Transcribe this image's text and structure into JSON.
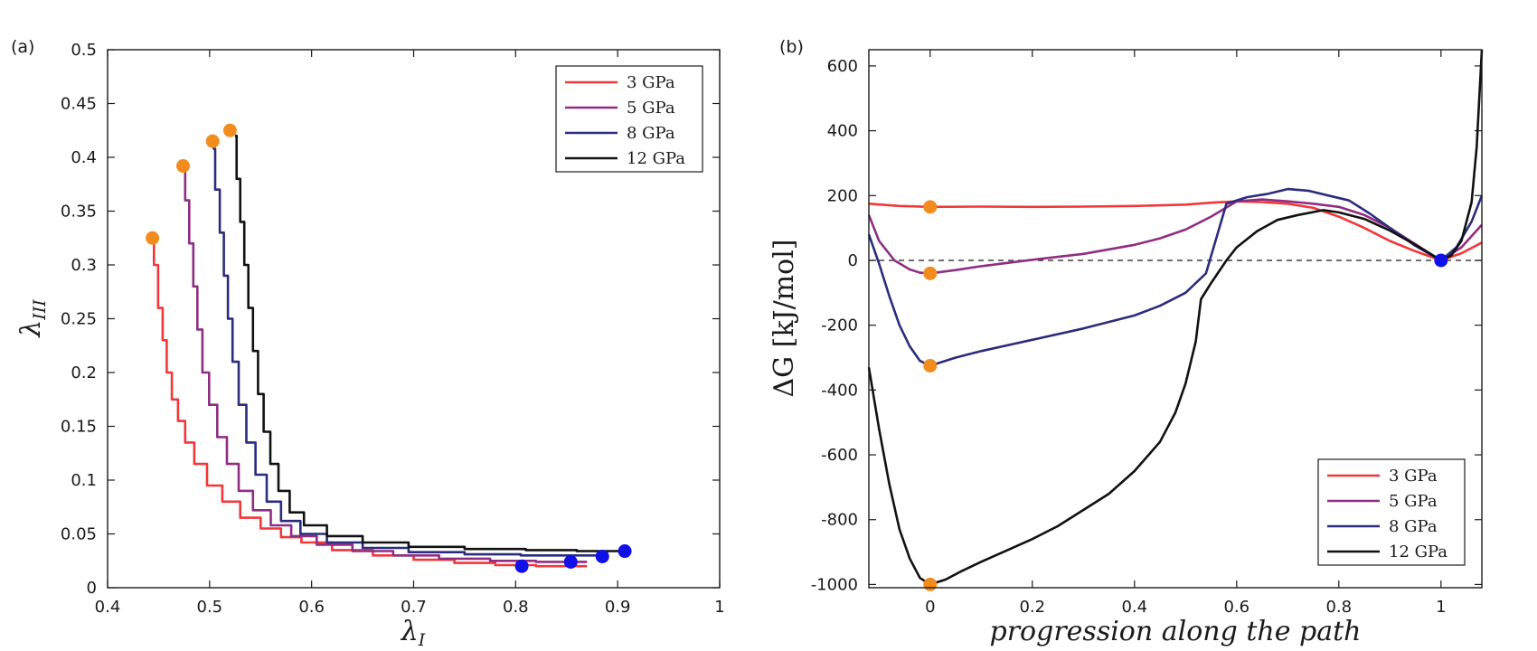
{
  "chart_data": [
    {
      "type": "line",
      "panel_label": "(a)",
      "xlabel": "λ",
      "xlabel_sub": "I",
      "ylabel": "λ",
      "ylabel_sub": "III",
      "xlim": [
        0.4,
        1.0
      ],
      "ylim": [
        0,
        0.5
      ],
      "xticks": [
        0.4,
        0.5,
        0.6,
        0.7,
        0.8,
        0.9,
        1.0
      ],
      "xtick_labels": [
        "0.4",
        "0.5",
        "0.6",
        "0.7",
        "0.8",
        "0.9",
        "1"
      ],
      "yticks": [
        0,
        0.05,
        0.1,
        0.15,
        0.2,
        0.25,
        0.3,
        0.35,
        0.4,
        0.45,
        0.5
      ],
      "ytick_labels": [
        "0",
        "0.05",
        "0.1",
        "0.15",
        "0.2",
        "0.25",
        "0.3",
        "0.35",
        "0.4",
        "0.45",
        "0.5"
      ],
      "legend_position": "top-right",
      "series": [
        {
          "name": "3 GPa",
          "color": "#f0383a",
          "x": [
            0.444,
            0.447,
            0.452,
            0.456,
            0.46,
            0.466,
            0.472,
            0.48,
            0.49,
            0.505,
            0.52,
            0.54,
            0.56,
            0.58,
            0.6,
            0.64,
            0.68,
            0.72,
            0.76,
            0.8,
            0.84,
            0.87
          ],
          "y": [
            0.325,
            0.3,
            0.26,
            0.23,
            0.2,
            0.175,
            0.155,
            0.135,
            0.115,
            0.095,
            0.08,
            0.065,
            0.055,
            0.047,
            0.042,
            0.035,
            0.03,
            0.026,
            0.023,
            0.021,
            0.02,
            0.02
          ]
        },
        {
          "name": "5 GPa",
          "color": "#8f2d82",
          "x": [
            0.474,
            0.478,
            0.482,
            0.486,
            0.49,
            0.496,
            0.503,
            0.512,
            0.522,
            0.535,
            0.55,
            0.57,
            0.59,
            0.62,
            0.66,
            0.7,
            0.75,
            0.8,
            0.84,
            0.87
          ],
          "y": [
            0.392,
            0.36,
            0.32,
            0.28,
            0.24,
            0.2,
            0.17,
            0.14,
            0.115,
            0.09,
            0.072,
            0.058,
            0.048,
            0.04,
            0.034,
            0.03,
            0.027,
            0.025,
            0.024,
            0.024
          ]
        },
        {
          "name": "8 GPa",
          "color": "#2b2c7c",
          "x": [
            0.503,
            0.508,
            0.512,
            0.516,
            0.52,
            0.525,
            0.532,
            0.54,
            0.55,
            0.562,
            0.578,
            0.6,
            0.63,
            0.67,
            0.72,
            0.78,
            0.83,
            0.87,
            0.89
          ],
          "y": [
            0.408,
            0.37,
            0.33,
            0.29,
            0.25,
            0.21,
            0.17,
            0.135,
            0.105,
            0.08,
            0.062,
            0.05,
            0.042,
            0.037,
            0.033,
            0.031,
            0.03,
            0.03,
            0.03
          ]
        },
        {
          "name": "12 GPa",
          "color": "#111111",
          "x": [
            0.525,
            0.528,
            0.532,
            0.536,
            0.54,
            0.545,
            0.55,
            0.556,
            0.563,
            0.572,
            0.585,
            0.6,
            0.63,
            0.67,
            0.72,
            0.78,
            0.84,
            0.88,
            0.91
          ],
          "y": [
            0.42,
            0.38,
            0.34,
            0.3,
            0.26,
            0.22,
            0.18,
            0.145,
            0.115,
            0.09,
            0.07,
            0.058,
            0.048,
            0.042,
            0.038,
            0.036,
            0.035,
            0.034,
            0.034
          ]
        }
      ],
      "start_markers": {
        "color": "#f28c1e",
        "points": [
          [
            0.444,
            0.325
          ],
          [
            0.474,
            0.392
          ],
          [
            0.503,
            0.415
          ],
          [
            0.52,
            0.425
          ]
        ]
      },
      "end_markers": {
        "color": "#1010e8",
        "points": [
          [
            0.806,
            0.02
          ],
          [
            0.854,
            0.024
          ],
          [
            0.885,
            0.029
          ],
          [
            0.907,
            0.034
          ]
        ]
      }
    },
    {
      "type": "line",
      "panel_label": "(b)",
      "xlabel": "progression along the path",
      "ylabel": "ΔG [kJ/mol]",
      "xlim": [
        -0.12,
        1.08
      ],
      "ylim": [
        -1010,
        650
      ],
      "xticks": [
        0,
        0.2,
        0.4,
        0.6,
        0.8,
        1
      ],
      "xtick_labels": [
        "0",
        "0.2",
        "0.4",
        "0.6",
        "0.8",
        "1"
      ],
      "yticks": [
        -1000,
        -800,
        -600,
        -400,
        -200,
        0,
        200,
        400,
        600
      ],
      "ytick_labels": [
        "-1000",
        "-800",
        "-600",
        "-400",
        "-200",
        "0",
        "200",
        "400",
        "600"
      ],
      "zero_line": "dashed",
      "legend_position": "bottom-right",
      "series": [
        {
          "name": "3 GPa",
          "color": "#f0383a",
          "x": [
            -0.12,
            -0.06,
            0,
            0.1,
            0.2,
            0.3,
            0.4,
            0.5,
            0.55,
            0.6,
            0.65,
            0.7,
            0.75,
            0.8,
            0.85,
            0.9,
            0.95,
            1.0,
            1.04,
            1.08
          ],
          "y": [
            175,
            168,
            165,
            166,
            165,
            166,
            168,
            172,
            178,
            182,
            180,
            175,
            162,
            135,
            100,
            60,
            28,
            0,
            22,
            55
          ]
        },
        {
          "name": "5 GPa",
          "color": "#8f2d82",
          "x": [
            -0.12,
            -0.1,
            -0.07,
            -0.04,
            -0.02,
            0,
            0.05,
            0.1,
            0.2,
            0.3,
            0.4,
            0.45,
            0.5,
            0.55,
            0.6,
            0.65,
            0.7,
            0.75,
            0.8,
            0.85,
            0.9,
            0.95,
            1.0,
            1.04,
            1.08
          ],
          "y": [
            140,
            60,
            0,
            -28,
            -38,
            -40,
            -30,
            -18,
            2,
            20,
            48,
            68,
            95,
            135,
            182,
            188,
            182,
            175,
            165,
            140,
            100,
            50,
            0,
            40,
            110
          ]
        },
        {
          "name": "8 GPa",
          "color": "#2b2c7c",
          "x": [
            -0.12,
            -0.1,
            -0.08,
            -0.06,
            -0.04,
            -0.02,
            0,
            0.05,
            0.1,
            0.2,
            0.3,
            0.4,
            0.45,
            0.5,
            0.54,
            0.58,
            0.62,
            0.66,
            0.7,
            0.74,
            0.78,
            0.82,
            0.86,
            0.9,
            0.95,
            1.0,
            1.03,
            1.06,
            1.08
          ],
          "y": [
            80,
            -10,
            -110,
            -200,
            -265,
            -310,
            -325,
            -300,
            -280,
            -245,
            -210,
            -170,
            -140,
            -100,
            -40,
            175,
            195,
            205,
            220,
            215,
            200,
            185,
            145,
            100,
            45,
            0,
            40,
            120,
            200
          ]
        },
        {
          "name": "12 GPa",
          "color": "#111111",
          "x": [
            -0.12,
            -0.1,
            -0.08,
            -0.06,
            -0.04,
            -0.02,
            0,
            0.03,
            0.06,
            0.1,
            0.15,
            0.2,
            0.25,
            0.3,
            0.35,
            0.4,
            0.45,
            0.48,
            0.5,
            0.52,
            0.53,
            0.55,
            0.58,
            0.6,
            0.64,
            0.68,
            0.72,
            0.77,
            0.8,
            0.85,
            0.9,
            0.95,
            1.0,
            1.02,
            1.04,
            1.06,
            1.07,
            1.08
          ],
          "y": [
            -330,
            -520,
            -690,
            -830,
            -920,
            -980,
            -1000,
            -985,
            -960,
            -930,
            -895,
            -860,
            -820,
            -770,
            -720,
            -650,
            -560,
            -470,
            -380,
            -250,
            -120,
            -70,
            0,
            40,
            90,
            125,
            140,
            155,
            148,
            128,
            92,
            48,
            0,
            15,
            60,
            180,
            350,
            650
          ]
        }
      ],
      "start_markers": {
        "color": "#f28c1e",
        "points": [
          [
            0,
            165
          ],
          [
            0,
            -40
          ],
          [
            0,
            -325
          ],
          [
            0,
            -1000
          ]
        ]
      },
      "end_markers": {
        "color": "#1010e8",
        "points": [
          [
            1,
            0
          ]
        ]
      }
    }
  ]
}
